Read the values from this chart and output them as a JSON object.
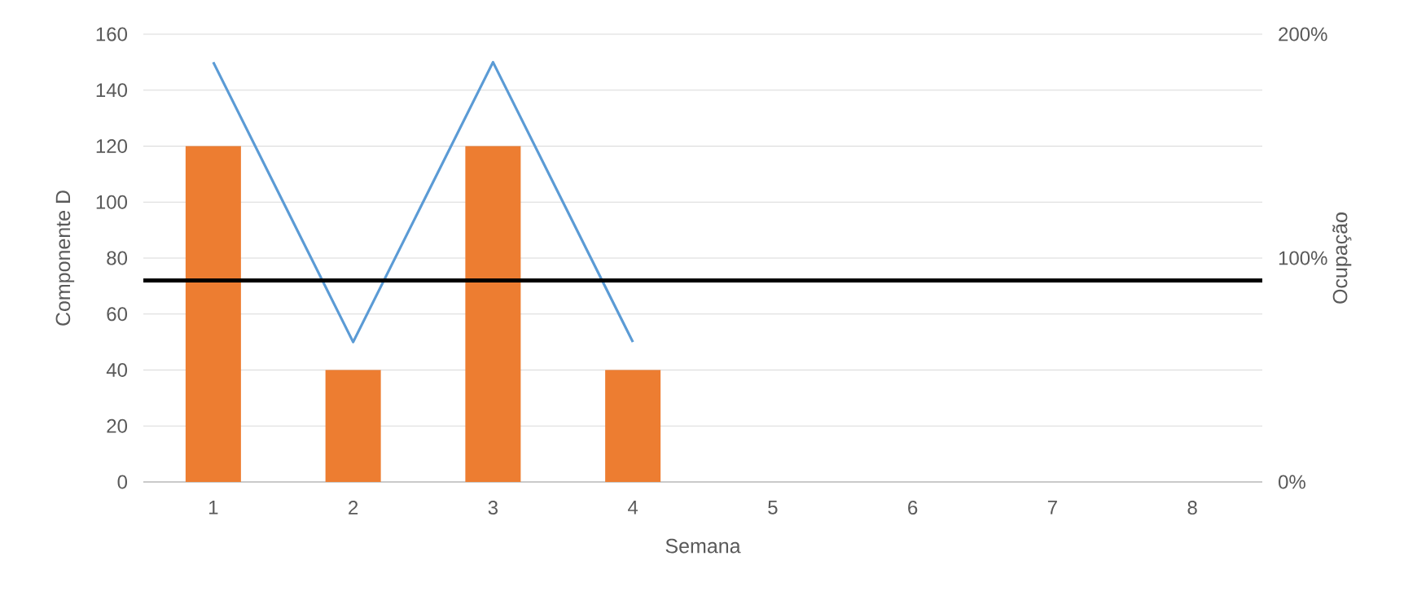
{
  "chart_data": {
    "type": "bar",
    "xlabel": "Semana",
    "ylabel": "Componente D",
    "y2label": "Ocupação",
    "categories": [
      "1",
      "2",
      "3",
      "4",
      "5",
      "6",
      "7",
      "8"
    ],
    "series": [
      {
        "color": "#ed7d31",
        "values": [
          120,
          40,
          120,
          40,
          null,
          null,
          null,
          null
        ]
      },
      {
        "type": "line",
        "axis": "y2",
        "color": "#5b9bd5",
        "values": [
          187.5,
          62.5,
          187.5,
          62.5,
          null,
          null,
          null,
          null
        ]
      }
    ],
    "ylim": [
      0,
      160
    ],
    "yticks": [
      0,
      20,
      40,
      60,
      80,
      100,
      120,
      140,
      160
    ],
    "y2lim": [
      0,
      200
    ],
    "y2ticks": [
      {
        "value": 0,
        "label": "0%"
      },
      {
        "value": 100,
        "label": "100%"
      },
      {
        "value": 200,
        "label": "200%"
      }
    ],
    "ref_lines": [
      {
        "axis": "y2",
        "value": 90,
        "color": "#000000"
      }
    ],
    "grid": "y"
  }
}
